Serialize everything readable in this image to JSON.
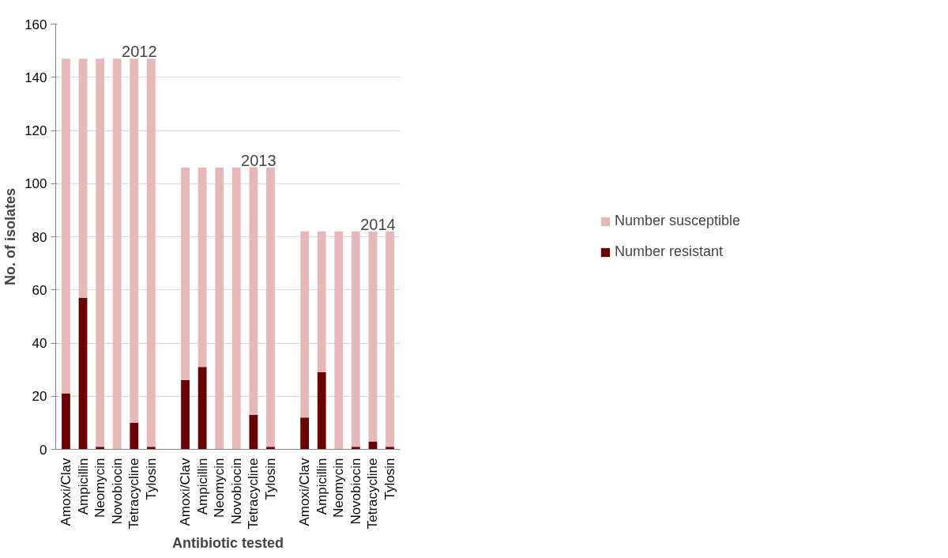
{
  "chart_data": {
    "type": "bar",
    "stacked": true,
    "xlabel": "Antibiotic tested",
    "ylabel": "No. of isolates",
    "categories": [
      "Amoxi/Clav",
      "Ampicillin",
      "Neomycin",
      "Novobiocin",
      "Tetracycline",
      "Tylosin",
      null,
      "Amoxi/Clav",
      "Ampicillin",
      "Neomycin",
      "Novobiocin",
      "Tetracycline",
      "Tylosin",
      null,
      "Amoxi/Clav",
      "Ampicillin",
      "Neomycin",
      "Novobiocin",
      "Tetracycline",
      "Tylosin"
    ],
    "series": [
      {
        "name": "Number resistant",
        "color": "#6b0000",
        "values": [
          21,
          57,
          1,
          0,
          10,
          1,
          null,
          26,
          31,
          0,
          0,
          13,
          1,
          null,
          12,
          29,
          0,
          1,
          3,
          1
        ]
      },
      {
        "name": "Number susceptible",
        "color": "#e6b9b8",
        "values": [
          126,
          90,
          146,
          147,
          137,
          146,
          null,
          80,
          75,
          106,
          106,
          93,
          105,
          null,
          70,
          53,
          82,
          81,
          79,
          81
        ]
      }
    ],
    "annotations": [
      "2012",
      "2013",
      "2014"
    ],
    "ylim": [
      0,
      160
    ],
    "yticks": [
      0,
      20,
      40,
      60,
      80,
      100,
      120,
      140,
      160
    ],
    "grid": "y",
    "legend": "right"
  }
}
